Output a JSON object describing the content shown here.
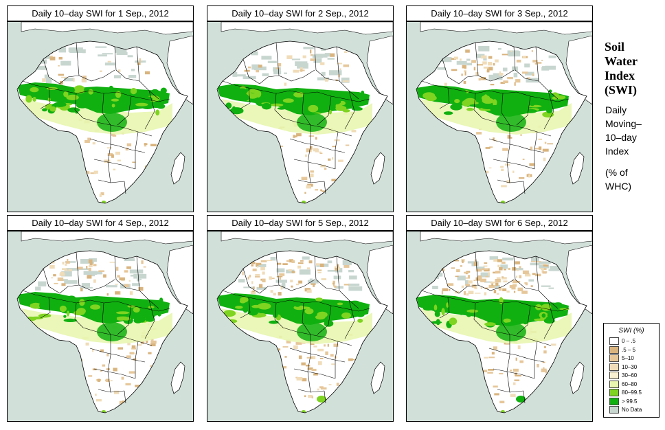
{
  "panels": [
    {
      "title": "Daily 10–day SWI for  1 Sep., 2012"
    },
    {
      "title": "Daily 10–day SWI for  2 Sep., 2012"
    },
    {
      "title": "Daily 10–day SWI for  3 Sep., 2012"
    },
    {
      "title": "Daily 10–day SWI for  4 Sep., 2012"
    },
    {
      "title": "Daily 10–day SWI for  5 Sep., 2012"
    },
    {
      "title": "Daily 10–day SWI for  6 Sep., 2012"
    }
  ],
  "side": {
    "title_lines": [
      "Soil",
      "Water",
      "Index",
      "(SWI)"
    ],
    "desc_lines": [
      "Daily",
      "Moving–",
      "10–day",
      "Index"
    ],
    "units_lines": [
      "(% of",
      " WHC)"
    ]
  },
  "legend": {
    "title": "SWI (%)",
    "items": [
      {
        "label": "0 – .5",
        "color": "#ffffff"
      },
      {
        "label": ".5 – 5",
        "color": "#d9b47e"
      },
      {
        "label": "5–10",
        "color": "#e6c79a"
      },
      {
        "label": "10–30",
        "color": "#f0dcb8"
      },
      {
        "label": "30–60",
        "color": "#f8f0d0"
      },
      {
        "label": "60–80",
        "color": "#e8f6b0"
      },
      {
        "label": "80–99.5",
        "color": "#7ed420"
      },
      {
        "label": "> 99.5",
        "color": "#10b010"
      },
      {
        "label": "No Data",
        "color": "#c8d6d0"
      }
    ]
  },
  "colors": {
    "sea": "#d2e0da",
    "land": "#ffffff",
    "border": "#000000"
  }
}
